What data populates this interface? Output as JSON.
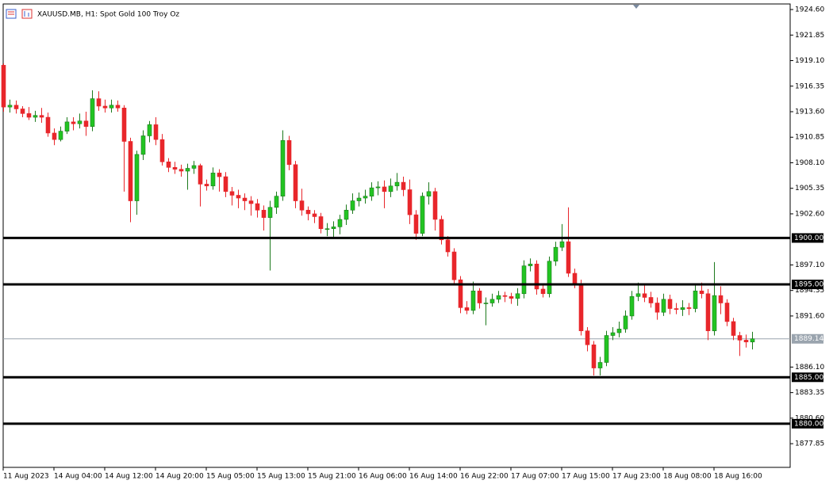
{
  "chart_data": {
    "type": "candlestick",
    "title": "XAUUSD.MB, H1:  Spot Gold 100 Troy Oz",
    "categories": [
      "11 Aug 2023",
      null,
      null,
      null,
      null,
      null,
      null,
      null,
      "14 Aug 04:00",
      null,
      null,
      null,
      null,
      null,
      null,
      null,
      "14 Aug 12:00",
      null,
      null,
      null,
      null,
      null,
      null,
      null,
      "14 Aug 20:00",
      null,
      null,
      null,
      null,
      null,
      null,
      null,
      "15 Aug 05:00",
      null,
      null,
      null,
      null,
      null,
      null,
      null,
      "15 Aug 13:00",
      null,
      null,
      null,
      null,
      null,
      null,
      null,
      "15 Aug 21:00",
      null,
      null,
      null,
      null,
      null,
      null,
      null,
      "16 Aug 06:00",
      null,
      null,
      null,
      null,
      null,
      null,
      null,
      "16 Aug 14:00",
      null,
      null,
      null,
      null,
      null,
      null,
      null,
      "16 Aug 22:00",
      null,
      null,
      null,
      null,
      null,
      null,
      null,
      "17 Aug 07:00",
      null,
      null,
      null,
      null,
      null,
      null,
      null,
      "17 Aug 15:00",
      null,
      null,
      null,
      null,
      null,
      null,
      null,
      "17 Aug 23:00",
      null,
      null,
      null,
      null,
      null,
      null,
      null,
      "18 Aug 08:00",
      null,
      null,
      null,
      null,
      null,
      null,
      null,
      "18 Aug 16:00",
      null,
      null,
      null,
      null,
      null,
      null
    ],
    "open": [
      1918.6,
      1914.1,
      1914.3,
      1913.9,
      1913.4,
      1913.0,
      1913.2,
      1913.0,
      1911.3,
      1910.6,
      1911.5,
      1912.5,
      1912.3,
      1912.6,
      1912.0,
      1915.0,
      1914.2,
      1914.0,
      1914.3,
      1914.0,
      1910.4,
      1904.0,
      1909.0,
      1911.0,
      1912.2,
      1910.6,
      1908.2,
      1907.6,
      1907.4,
      1907.2,
      1907.5,
      1907.8,
      1905.8,
      1905.6,
      1907.0,
      1906.6,
      1905.0,
      1904.6,
      1904.3,
      1904.0,
      1903.7,
      1903.0,
      1902.2,
      1903.3,
      1904.5,
      1910.5,
      1907.9,
      1904.0,
      1903.0,
      1902.6,
      1902.3,
      1901.0,
      1901.0,
      1901.2,
      1902.0,
      1903.0,
      1904.0,
      1904.3,
      1904.5,
      1905.4,
      1905.5,
      1905.0,
      1905.6,
      1906.0,
      1905.2,
      1902.5,
      1900.5,
      1904.5,
      1905.0,
      1902.0,
      1899.8,
      1898.5,
      1895.5,
      1892.5,
      1892.2,
      1894.3,
      1893.0,
      1893.0,
      1893.4,
      1893.8,
      1893.7,
      1893.5,
      1894.0,
      1897.0,
      1897.2,
      1894.5,
      1894.0,
      1897.5,
      1899.0,
      1899.6,
      1896.2,
      1895.0,
      1890.0,
      1888.5,
      1886.0,
      1886.6,
      1889.5,
      1889.8,
      1890.2,
      1891.6,
      1893.7,
      1894.0,
      1893.6,
      1893.0,
      1892.0,
      1893.4,
      1892.4,
      1892.3,
      1892.5,
      1892.4,
      1894.3,
      1894.0,
      1890.0,
      1893.8,
      1893.0,
      1891.0,
      1889.5,
      1889.0,
      1888.8
    ],
    "high": [
      1918.8,
      1914.9,
      1914.8,
      1914.2,
      1914.1,
      1913.7,
      1914.0,
      1913.5,
      1911.8,
      1912.0,
      1913.0,
      1913.0,
      1913.4,
      1913.6,
      1915.9,
      1915.8,
      1914.9,
      1914.9,
      1914.8,
      1914.3,
      1910.8,
      1909.4,
      1911.6,
      1912.6,
      1913.0,
      1911.2,
      1908.6,
      1908.2,
      1907.9,
      1908.0,
      1908.3,
      1908.0,
      1906.3,
      1907.6,
      1907.4,
      1907.1,
      1905.5,
      1905.2,
      1904.8,
      1904.5,
      1904.2,
      1903.5,
      1904.0,
      1905.0,
      1911.6,
      1911.0,
      1908.3,
      1905.3,
      1903.4,
      1903.0,
      1902.7,
      1901.6,
      1901.8,
      1902.5,
      1903.6,
      1904.8,
      1904.9,
      1905.2,
      1906.0,
      1906.1,
      1906.2,
      1906.4,
      1907.0,
      1906.6,
      1906.3,
      1903.0,
      1904.9,
      1906.0,
      1905.4,
      1902.4,
      1900.2,
      1898.9,
      1895.9,
      1893.2,
      1895.3,
      1894.6,
      1893.6,
      1894.0,
      1894.3,
      1894.2,
      1894.1,
      1894.6,
      1897.6,
      1897.8,
      1897.6,
      1894.9,
      1898.0,
      1899.6,
      1901.5,
      1903.3,
      1896.7,
      1895.5,
      1890.4,
      1888.9,
      1887.2,
      1890.0,
      1890.4,
      1891.0,
      1892.2,
      1894.3,
      1895.2,
      1894.9,
      1894.2,
      1893.6,
      1894.0,
      1893.9,
      1893.0,
      1893.3,
      1893.0,
      1895.0,
      1895.2,
      1894.5,
      1897.4,
      1894.8,
      1893.4,
      1891.4,
      1889.9,
      1889.6,
      1889.9
    ],
    "low": [
      1913.6,
      1913.5,
      1913.4,
      1913.0,
      1912.7,
      1912.5,
      1912.4,
      1910.9,
      1910.0,
      1910.4,
      1911.2,
      1911.6,
      1911.8,
      1911.0,
      1911.5,
      1913.7,
      1913.5,
      1913.5,
      1913.6,
      1905.0,
      1901.7,
      1902.5,
      1908.4,
      1910.3,
      1910.0,
      1907.8,
      1907.1,
      1906.9,
      1906.6,
      1905.2,
      1906.9,
      1903.4,
      1905.1,
      1905.2,
      1905.0,
      1904.4,
      1903.5,
      1903.2,
      1903.0,
      1902.4,
      1902.2,
      1900.8,
      1896.5,
      1902.6,
      1904.0,
      1907.3,
      1903.2,
      1902.4,
      1901.9,
      1901.6,
      1900.5,
      1900.2,
      1900.1,
      1900.4,
      1901.4,
      1902.6,
      1903.4,
      1903.7,
      1904.0,
      1904.6,
      1903.2,
      1904.4,
      1905.1,
      1904.5,
      1901.5,
      1899.8,
      1900.2,
      1903.6,
      1900.8,
      1899.3,
      1898.0,
      1895.0,
      1891.9,
      1891.8,
      1891.8,
      1892.4,
      1890.6,
      1892.6,
      1893.0,
      1893.1,
      1892.9,
      1892.7,
      1893.5,
      1896.4,
      1893.9,
      1893.6,
      1893.6,
      1897.0,
      1898.6,
      1895.8,
      1894.6,
      1889.5,
      1887.8,
      1885.2,
      1885.2,
      1886.2,
      1889.0,
      1889.3,
      1889.8,
      1891.2,
      1893.2,
      1893.1,
      1892.5,
      1891.2,
      1891.6,
      1891.8,
      1891.8,
      1891.6,
      1891.7,
      1892.0,
      1893.5,
      1889.0,
      1889.5,
      1891.8,
      1890.5,
      1889.0,
      1887.3,
      1888.2,
      1888.0
    ],
    "close": [
      1914.1,
      1914.3,
      1913.9,
      1913.4,
      1913.0,
      1913.2,
      1913.0,
      1911.3,
      1910.6,
      1911.5,
      1912.5,
      1912.3,
      1912.6,
      1912.0,
      1915.0,
      1914.2,
      1914.0,
      1914.3,
      1914.0,
      1910.4,
      1904.0,
      1909.0,
      1911.0,
      1912.2,
      1910.6,
      1908.2,
      1907.6,
      1907.4,
      1907.2,
      1907.5,
      1907.8,
      1905.8,
      1905.6,
      1907.0,
      1906.6,
      1905.0,
      1904.6,
      1904.3,
      1904.0,
      1903.7,
      1903.0,
      1902.2,
      1903.3,
      1904.5,
      1910.5,
      1907.9,
      1904.0,
      1903.0,
      1902.6,
      1902.3,
      1901.0,
      1901.0,
      1901.2,
      1902.0,
      1903.0,
      1904.0,
      1904.3,
      1904.5,
      1905.4,
      1905.5,
      1905.0,
      1905.6,
      1906.0,
      1905.2,
      1902.5,
      1900.5,
      1904.5,
      1905.0,
      1902.0,
      1899.8,
      1898.5,
      1895.5,
      1892.5,
      1892.2,
      1894.3,
      1893.0,
      1893.0,
      1893.4,
      1893.8,
      1893.7,
      1893.5,
      1894.0,
      1897.0,
      1897.2,
      1894.5,
      1894.0,
      1897.5,
      1899.0,
      1899.6,
      1896.2,
      1895.0,
      1890.0,
      1888.5,
      1886.0,
      1886.6,
      1889.5,
      1889.8,
      1890.2,
      1891.6,
      1893.7,
      1894.0,
      1893.6,
      1893.0,
      1892.0,
      1893.4,
      1892.4,
      1892.3,
      1892.5,
      1892.4,
      1894.3,
      1894.0,
      1890.0,
      1893.8,
      1893.0,
      1891.0,
      1889.5,
      1889.0,
      1888.8,
      1889.14
    ],
    "up_color": "#22c422",
    "down_color": "#e8262b",
    "ylim": [
      1875.3,
      1925.2
    ],
    "yticks": [
      {
        "value": 1924.6,
        "label": "1924.60"
      },
      {
        "value": 1921.85,
        "label": "1921.85"
      },
      {
        "value": 1919.1,
        "label": "1919.10"
      },
      {
        "value": 1916.35,
        "label": "1916.35"
      },
      {
        "value": 1913.6,
        "label": "1913.60"
      },
      {
        "value": 1910.85,
        "label": "1910.85"
      },
      {
        "value": 1908.1,
        "label": "1908.10"
      },
      {
        "value": 1905.35,
        "label": "1905.35"
      },
      {
        "value": 1902.6,
        "label": "1902.60"
      },
      {
        "value": 1897.1,
        "label": "1897.10"
      },
      {
        "value": 1894.35,
        "label": "1894.35"
      },
      {
        "value": 1891.6,
        "label": "1891.60"
      },
      {
        "value": 1886.1,
        "label": "1886.10"
      },
      {
        "value": 1883.35,
        "label": "1883.35"
      },
      {
        "value": 1880.6,
        "label": "1880.60"
      },
      {
        "value": 1877.85,
        "label": "1877.85"
      }
    ],
    "levels": [
      {
        "value": 1900,
        "label": "1900.00"
      },
      {
        "value": 1895,
        "label": "1895.00"
      },
      {
        "value": 1885,
        "label": "1885.00"
      },
      {
        "value": 1880,
        "label": "1880.00"
      }
    ],
    "last_price": {
      "value": 1889.14,
      "label": "1889.14"
    }
  }
}
